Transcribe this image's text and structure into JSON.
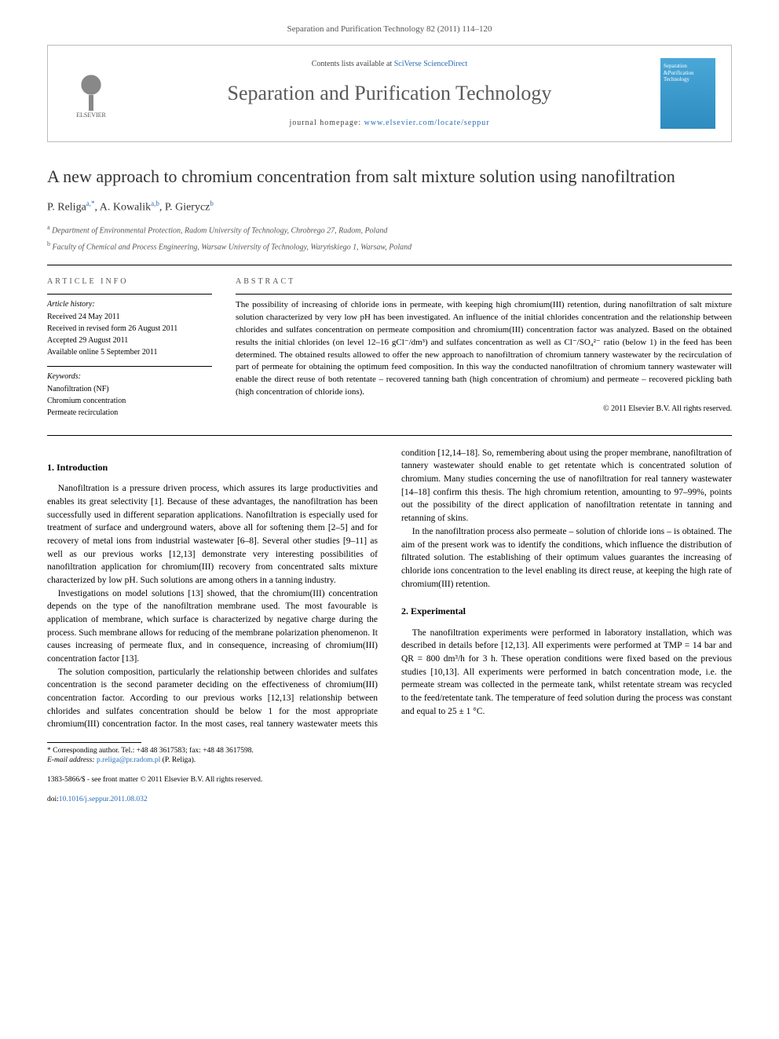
{
  "journal_ref": "Separation and Purification Technology 82 (2011) 114–120",
  "header": {
    "elsevier_label": "ELSEVIER",
    "contents_prefix": "Contents lists available at ",
    "contents_link": "SciVerse ScienceDirect",
    "journal_name": "Separation and Purification Technology",
    "homepage_prefix": "journal homepage: ",
    "homepage_link": "www.elsevier.com/locate/seppur",
    "cover_text": "Separation &Purification Technology"
  },
  "title": "A new approach to chromium concentration from salt mixture solution using nanofiltration",
  "authors_html": "P. Religa<sup>a,*</sup>, A. Kowalik<sup>a,b</sup>, P. Gierycz<sup>b</sup>",
  "authors": [
    {
      "name": "P. Religa",
      "sup": "a,*"
    },
    {
      "name": "A. Kowalik",
      "sup": "a,b"
    },
    {
      "name": "P. Gierycz",
      "sup": "b"
    }
  ],
  "affiliations": [
    {
      "sup": "a",
      "text": "Department of Environmental Protection, Radom University of Technology, Chrobrego 27, Radom, Poland"
    },
    {
      "sup": "b",
      "text": "Faculty of Chemical and Process Engineering, Warsaw University of Technology, Waryńskiego 1, Warsaw, Poland"
    }
  ],
  "info": {
    "heading": "ARTICLE INFO",
    "history_label": "Article history:",
    "history": [
      "Received 24 May 2011",
      "Received in revised form 26 August 2011",
      "Accepted 29 August 2011",
      "Available online 5 September 2011"
    ],
    "keywords_label": "Keywords:",
    "keywords": [
      "Nanofiltration (NF)",
      "Chromium concentration",
      "Permeate recirculation"
    ]
  },
  "abstract": {
    "heading": "ABSTRACT",
    "text": "The possibility of increasing of chloride ions in permeate, with keeping high chromium(III) retention, during nanofiltration of salt mixture solution characterized by very low pH has been investigated. An influence of the initial chlorides concentration and the relationship between chlorides and sulfates concentration on permeate composition and chromium(III) concentration factor was analyzed. Based on the obtained results the initial chlorides (on level 12–16 gCl⁻/dm³) and sulfates concentration as well as Cl⁻/SO₄²⁻ ratio (below 1) in the feed has been determined. The obtained results allowed to offer the new approach to nanofiltration of chromium tannery wastewater by the recirculation of part of permeate for obtaining the optimum feed composition. In this way the conducted nanofiltration of chromium tannery wastewater will enable the direct reuse of both retentate – recovered tanning bath (high concentration of chromium) and permeate – recovered pickling bath (high concentration of chloride ions).",
    "copyright": "© 2011 Elsevier B.V. All rights reserved."
  },
  "body": {
    "intro_heading": "1. Introduction",
    "intro_p1": "Nanofiltration is a pressure driven process, which assures its large productivities and enables its great selectivity [1]. Because of these advantages, the nanofiltration has been successfully used in different separation applications. Nanofiltration is especially used for treatment of surface and underground waters, above all for softening them [2–5] and for recovery of metal ions from industrial wastewater [6–8]. Several other studies [9–11] as well as our previous works [12,13] demonstrate very interesting possibilities of nanofiltration application for chromium(III) recovery from concentrated salts mixture characterized by low pH. Such solutions are among others in a tanning industry.",
    "intro_p2": "Investigations on model solutions [13] showed, that the chromium(III) concentration depends on the type of the nanofiltration membrane used. The most favourable is application of membrane, which surface is characterized by negative charge during the process. Such membrane allows for reducing of the membrane polarization phenomenon. It causes increasing of permeate flux, and in consequence, increasing of chromium(III) concentration factor [13].",
    "intro_p3": "The solution composition, particularly the relationship between chlorides and sulfates concentration is the second parameter deciding on the effectiveness of chromium(III) concentration factor. According to our previous works [12,13] relationship between chlorides and sulfates concentration should be below 1 for the most appropriate chromium(III) concentration factor. In the most cases, real tannery wastewater meets this condition [12,14–18]. So, remembering about using the proper membrane, nanofiltration of tannery wastewater should enable to get retentate which is concentrated solution of chromium. Many studies concerning the use of nanofiltration for real tannery wastewater [14–18] confirm this thesis. The high chromium retention, amounting to 97–99%, points out the possibility of the direct application of nanofiltration retentate in tanning and retanning of skins.",
    "intro_p4": "In the nanofiltration process also permeate – solution of chloride ions – is obtained. The aim of the present work was to identify the conditions, which influence the distribution of filtrated solution. The establishing of their optimum values guarantes the increasing of chloride ions concentration to the level enabling its direct reuse, at keeping the high rate of chromium(III) retention.",
    "exp_heading": "2. Experimental",
    "exp_p1": "The nanofiltration experiments were performed in laboratory installation, which was described in details before [12,13]. All experiments were performed at TMP = 14 bar and QR = 800 dm³/h for 3 h. These operation conditions were fixed based on the previous studies [10,13]. All experiments were performed in batch concentration mode, i.e. the permeate stream was collected in the permeate tank, whilst retentate stream was recycled to the feed/retentate tank. The temperature of feed solution during the process was constant and equal to 25 ± 1 °C."
  },
  "footnote": {
    "corr": "* Corresponding author. Tel.: +48 48 3617583; fax: +48 48 3617598.",
    "email_label": "E-mail address:",
    "email": "p.religa@pr.radom.pl",
    "email_name": "(P. Religa)."
  },
  "footer": {
    "issn": "1383-5866/$ - see front matter © 2011 Elsevier B.V. All rights reserved.",
    "doi_label": "doi:",
    "doi": "10.1016/j.seppur.2011.08.032"
  },
  "colors": {
    "link": "#2a6db5",
    "text": "#000000",
    "muted": "#555555",
    "cover_bg_top": "#4aa8d8",
    "cover_bg_bot": "#2e8bc0"
  }
}
